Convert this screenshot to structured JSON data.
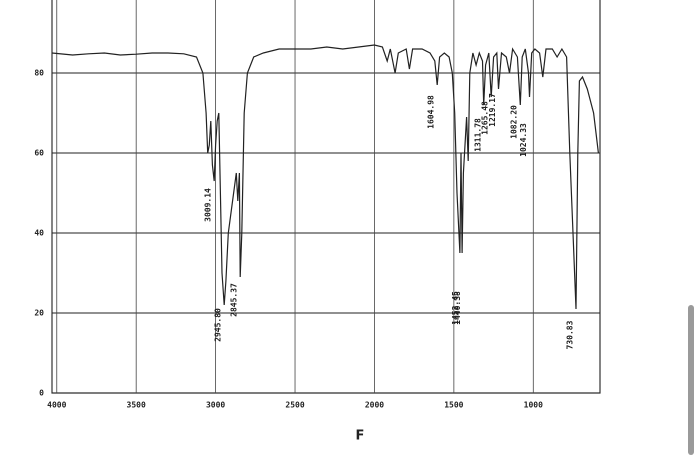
{
  "chart_data": {
    "type": "line",
    "x": [
      4030,
      3900,
      3800,
      3700,
      3600,
      3500,
      3400,
      3300,
      3200,
      3120,
      3080,
      3060,
      3050,
      3040,
      3030,
      3020,
      3009,
      3000,
      2990,
      2980,
      2970,
      2960,
      2946,
      2935,
      2920,
      2900,
      2880,
      2870,
      2860,
      2850,
      2845,
      2835,
      2820,
      2800,
      2760,
      2700,
      2600,
      2500,
      2400,
      2300,
      2200,
      2100,
      2000,
      1950,
      1920,
      1900,
      1870,
      1850,
      1800,
      1780,
      1760,
      1700,
      1650,
      1620,
      1605,
      1590,
      1560,
      1530,
      1510,
      1495,
      1480,
      1462,
      1455,
      1448,
      1440,
      1430,
      1420,
      1410,
      1400,
      1380,
      1360,
      1340,
      1320,
      1312,
      1300,
      1280,
      1265,
      1250,
      1230,
      1219,
      1200,
      1170,
      1150,
      1130,
      1100,
      1082,
      1070,
      1050,
      1030,
      1024,
      1010,
      990,
      960,
      940,
      920,
      880,
      850,
      820,
      790,
      770,
      750,
      731,
      720,
      710,
      690,
      660,
      620,
      590
    ],
    "series": [
      {
        "color": "#222222",
        "values": [
          85,
          84.5,
          84.8,
          85,
          84.5,
          84.7,
          85,
          85,
          84.8,
          84,
          80,
          70,
          60,
          62,
          68,
          57,
          53,
          62,
          68,
          70,
          50,
          30,
          22,
          28,
          40,
          46,
          52,
          55,
          48,
          55,
          29,
          40,
          70,
          80,
          84,
          85,
          86,
          86,
          86,
          86.5,
          86,
          86.5,
          87,
          86.5,
          83,
          86,
          80,
          85,
          86,
          81,
          86,
          86,
          85,
          83,
          77,
          84,
          85,
          84,
          80,
          70,
          50,
          35,
          60,
          35,
          55,
          62,
          69,
          58,
          80,
          85,
          82,
          85,
          83,
          72,
          82,
          85,
          74,
          84,
          85,
          76,
          85,
          84,
          80,
          86,
          84,
          72,
          84,
          86,
          80,
          74,
          85,
          86,
          85,
          79,
          86,
          86,
          84,
          86,
          84,
          60,
          40,
          21,
          60,
          78,
          79,
          76,
          70,
          60
        ]
      }
    ],
    "xlim": [
      4030,
      580
    ],
    "ylim": [
      0,
      100
    ],
    "xticks": [
      4000,
      3500,
      3000,
      2500,
      2000,
      1500,
      1000
    ],
    "yticks": [
      0,
      20,
      40,
      60,
      80
    ],
    "grid": true,
    "annotations": [
      {
        "value": 3009.14,
        "label": "3009.14"
      },
      {
        "value": 2945.8,
        "label": "2945.80"
      },
      {
        "value": 2845.37,
        "label": "2845.37"
      },
      {
        "value": 1604.98,
        "label": "1604.98"
      },
      {
        "value": 1452.45,
        "label": "1452.45"
      },
      {
        "value": 1440.38,
        "label": "1440.38"
      },
      {
        "value": 1311.78,
        "label": "1311.78"
      },
      {
        "value": 1265.48,
        "label": "1265.48"
      },
      {
        "value": 1219.17,
        "label": "1219.17"
      },
      {
        "value": 1082.2,
        "label": "1082.20"
      },
      {
        "value": 1024.33,
        "label": "1024.33"
      },
      {
        "value": 730.83,
        "label": "730.83"
      }
    ],
    "caption": "F"
  }
}
